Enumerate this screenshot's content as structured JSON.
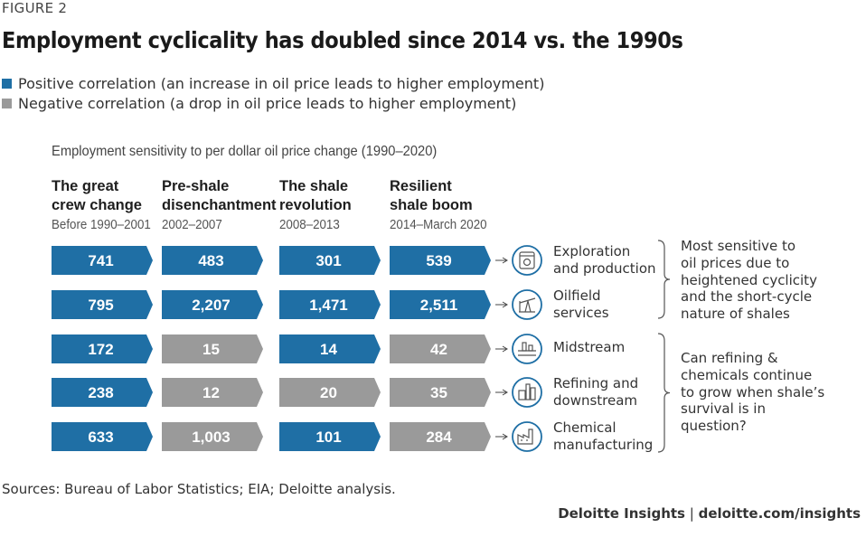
{
  "figure_label": "FIGURE 2",
  "title": "Employment cyclicality has doubled since 2014 vs. the 1990s",
  "legend": [
    {
      "label": "Positive correlation (an increase in oil price leads to higher employment)",
      "color": "#1f6fa5"
    },
    {
      "label": "Negative correlation (a drop in oil price leads to higher employment)",
      "color": "#9a9a9a"
    }
  ],
  "colors": {
    "positive": "#1f6fa5",
    "negative": "#9a9a9a",
    "icon_border": "#1f6fa5",
    "bracket": "#555555"
  },
  "chart_data": {
    "type": "table",
    "title": "Employment sensitivity to per dollar oil price change (1990–2020)",
    "columns": [
      {
        "title": "The great\ncrew change",
        "period": "Before 1990–2001"
      },
      {
        "title": "Pre-shale\ndisenchantment",
        "period": "2002–2007"
      },
      {
        "title": "The shale\nrevolution",
        "period": "2008–2013"
      },
      {
        "title": "Resilient\nshale boom",
        "period": "2014–March 2020"
      }
    ],
    "rows": [
      {
        "sector": "Exploration\nand production",
        "icon": "oil-tank-icon",
        "values": [
          "741",
          "483",
          "301",
          "539"
        ],
        "positive": [
          true,
          true,
          true,
          true
        ]
      },
      {
        "sector": "Oilfield\nservices",
        "icon": "oil-pump-icon",
        "values": [
          "795",
          "2,207",
          "1,471",
          "2,511"
        ],
        "positive": [
          true,
          true,
          true,
          true
        ]
      },
      {
        "sector": "Midstream",
        "icon": "pipeline-icon",
        "values": [
          "172",
          "15",
          "14",
          "42"
        ],
        "positive": [
          true,
          false,
          true,
          false
        ]
      },
      {
        "sector": "Refining and\ndownstream",
        "icon": "refinery-icon",
        "values": [
          "238",
          "12",
          "20",
          "35"
        ],
        "positive": [
          true,
          false,
          false,
          false
        ]
      },
      {
        "sector": "Chemical\nmanufacturing",
        "icon": "factory-icon",
        "values": [
          "633",
          "1,003",
          "101",
          "284"
        ],
        "positive": [
          true,
          false,
          true,
          false
        ]
      }
    ],
    "notes": [
      "Most sensitive to\noil prices due to\nheightened cyclicity\nand the short-cycle\nnature of shales",
      "Can refining &\nchemicals continue\nto grow when shale’s\nsurvival is in\nquestion?"
    ]
  },
  "sources": "Sources: Bureau of Labor Statistics; EIA; Deloitte analysis.",
  "footer": {
    "brand": "Deloitte Insights",
    "separator": " | ",
    "url": "deloitte.com/insights"
  }
}
